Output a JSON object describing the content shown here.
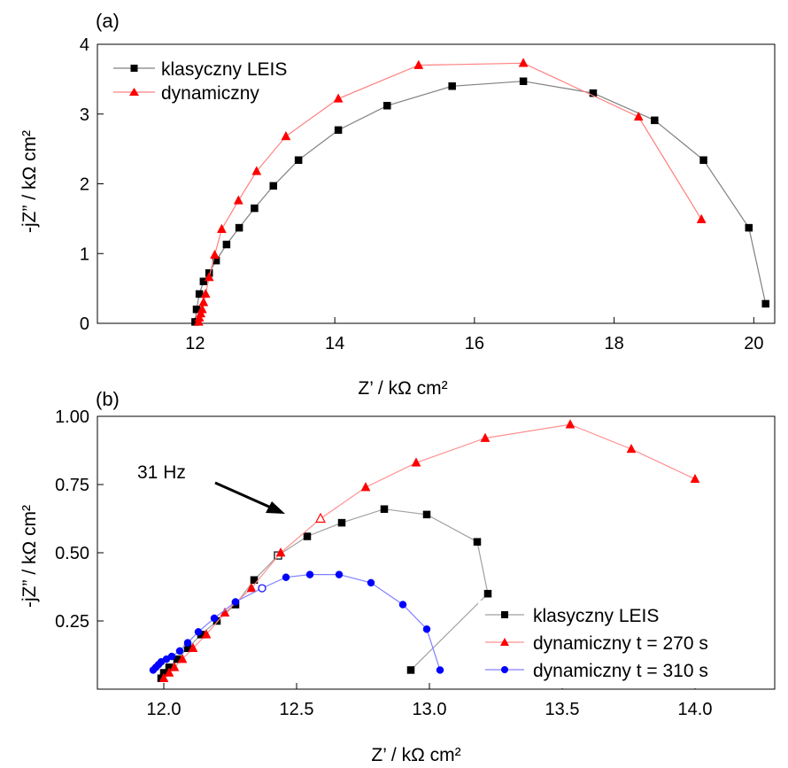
{
  "chart_data": [
    {
      "panel_label": "(a)",
      "type": "line",
      "xlabel": "Z’ / kΩ cm²",
      "ylabel": "-jZ” / kΩ cm²",
      "xlim": [
        10.6,
        20.3
      ],
      "ylim": [
        0,
        4
      ],
      "xticks": [
        "12",
        "14",
        "16",
        "18",
        "20"
      ],
      "yticks": [
        "0",
        "1",
        "2",
        "3",
        "4"
      ],
      "legend_position": "top-left",
      "series": [
        {
          "name": "klasyczny LEIS",
          "color": "#000000",
          "line_color": "#808080",
          "marker": "square",
          "x": [
            12.0,
            12.02,
            12.06,
            12.12,
            12.2,
            12.3,
            12.45,
            12.63,
            12.85,
            13.12,
            13.48,
            14.05,
            14.75,
            15.68,
            16.7,
            17.7,
            18.58,
            19.28,
            19.93,
            20.17
          ],
          "y": [
            0.02,
            0.2,
            0.42,
            0.6,
            0.72,
            0.9,
            1.13,
            1.37,
            1.65,
            1.97,
            2.34,
            2.77,
            3.12,
            3.4,
            3.47,
            3.3,
            2.91,
            2.34,
            1.37,
            0.28
          ]
        },
        {
          "name": "dynamiczny",
          "color": "#ff0000",
          "line_color": "#ff8080",
          "marker": "triangle",
          "x": [
            12.05,
            12.06,
            12.08,
            12.1,
            12.12,
            12.15,
            12.2,
            12.28,
            12.38,
            12.62,
            12.88,
            13.3,
            14.05,
            15.2,
            16.7,
            18.35,
            19.25
          ],
          "y": [
            0.02,
            0.08,
            0.14,
            0.2,
            0.3,
            0.42,
            0.66,
            0.98,
            1.35,
            1.76,
            2.18,
            2.68,
            3.22,
            3.7,
            3.73,
            2.96,
            1.49
          ]
        }
      ]
    },
    {
      "panel_label": "(b)",
      "type": "line",
      "xlabel": "Z’ / kΩ cm²",
      "ylabel": "-jZ” / kΩ cm²",
      "xlim": [
        11.75,
        14.3
      ],
      "ylim": [
        0,
        1.0
      ],
      "xticks": [
        "12.0",
        "12.5",
        "13.0",
        "13.5",
        "14.0"
      ],
      "yticks": [
        "0.25",
        "0.50",
        "0.75",
        "1.00"
      ],
      "legend_position": "bottom-right",
      "annotation": {
        "text": "31 Hz",
        "target_x": 12.44,
        "target_y": 0.625
      },
      "series": [
        {
          "name": "klasyczny LEIS",
          "color": "#000000",
          "line_color": "#a0a0a0",
          "marker": "square",
          "x": [
            11.99,
            12.0,
            12.02,
            12.05,
            12.09,
            12.14,
            12.2,
            12.27,
            12.34,
            12.43,
            12.54,
            12.67,
            12.83,
            12.99,
            13.18,
            13.22,
            12.93
          ],
          "y": [
            0.04,
            0.06,
            0.08,
            0.11,
            0.15,
            0.2,
            0.25,
            0.31,
            0.4,
            0.49,
            0.56,
            0.61,
            0.66,
            0.64,
            0.54,
            0.35,
            0.07
          ],
          "hollow_index": 9
        },
        {
          "name": "dynamiczny t = 270 s",
          "color": "#ff0000",
          "line_color": "#ff9090",
          "marker": "triangle",
          "x": [
            12.0,
            12.02,
            12.04,
            12.07,
            12.11,
            12.16,
            12.23,
            12.33,
            12.44,
            12.59,
            12.76,
            12.95,
            13.21,
            13.53,
            13.76,
            14.0
          ],
          "y": [
            0.04,
            0.06,
            0.08,
            0.11,
            0.15,
            0.2,
            0.28,
            0.37,
            0.5,
            0.625,
            0.74,
            0.83,
            0.92,
            0.97,
            0.88,
            0.77
          ],
          "y_fix": [
            0.04,
            0.06,
            0.08,
            0.11,
            0.15,
            0.21,
            0.28,
            0.37,
            0.5,
            0.625,
            0.745,
            0.83,
            0.92,
            0.97,
            0.885,
            0.775
          ],
          "hollow_index": 9
        },
        {
          "name": "dynamiczny t = 310 s",
          "color": "#0000ff",
          "line_color": "#8080ff",
          "marker": "circle",
          "x": [
            11.96,
            11.97,
            11.98,
            11.99,
            12.01,
            12.03,
            12.06,
            12.09,
            12.13,
            12.19,
            12.27,
            12.37,
            12.46,
            12.55,
            12.66,
            12.78,
            12.9,
            12.99,
            13.04
          ],
          "y": [
            0.07,
            0.08,
            0.09,
            0.1,
            0.11,
            0.12,
            0.14,
            0.17,
            0.21,
            0.26,
            0.32,
            0.37,
            0.41,
            0.42,
            0.42,
            0.39,
            0.31,
            0.22,
            0.07
          ],
          "hollow_index": 11
        }
      ]
    }
  ]
}
